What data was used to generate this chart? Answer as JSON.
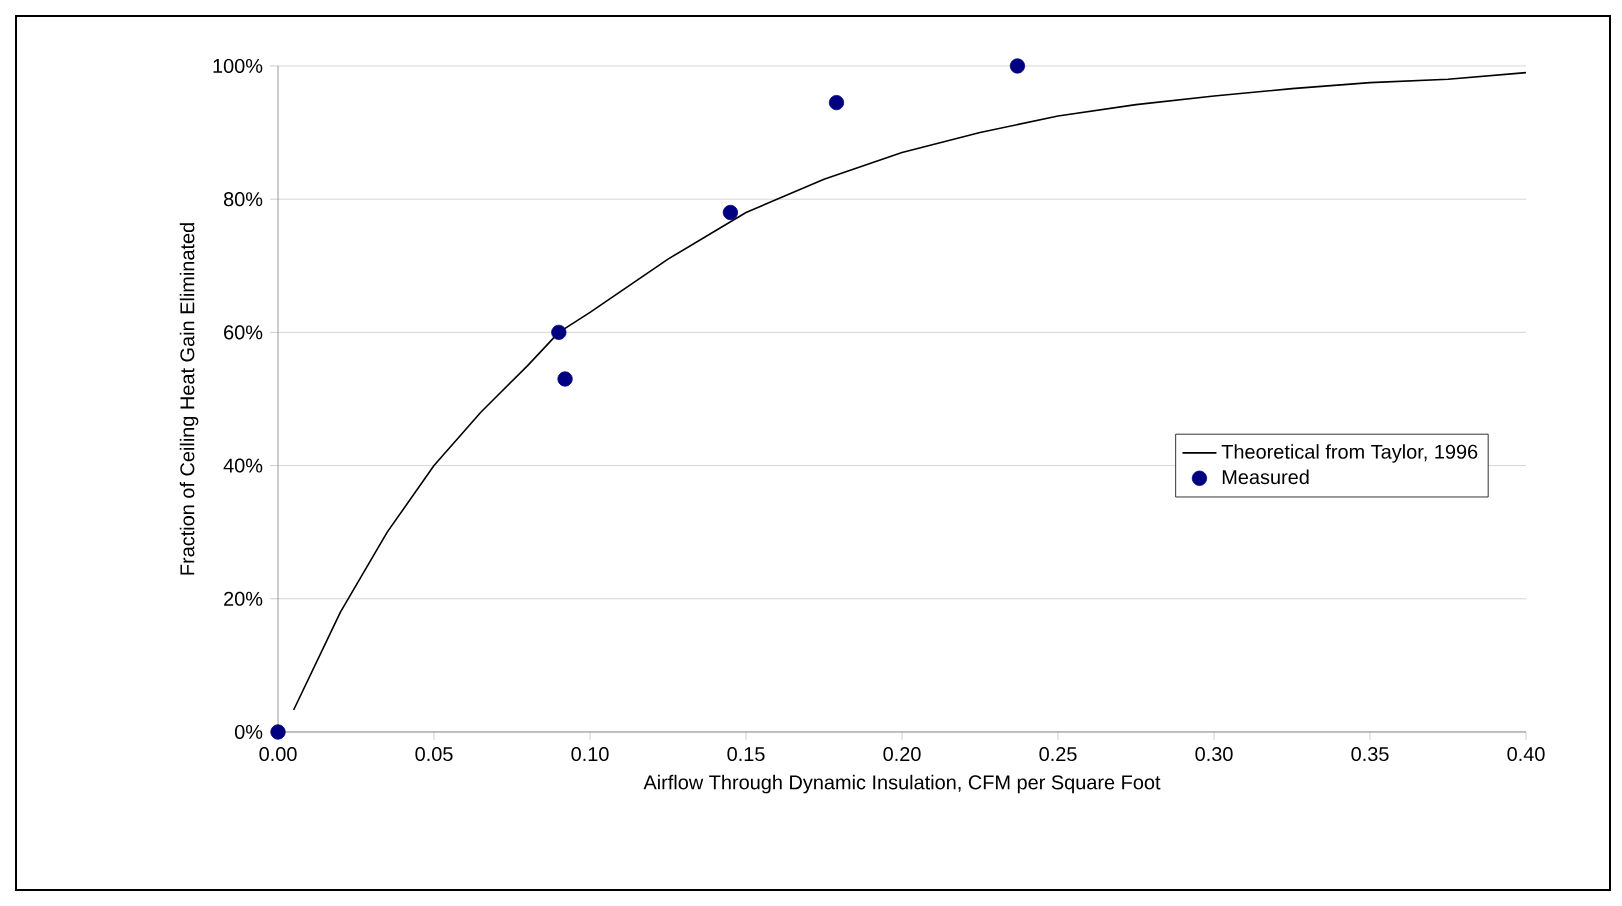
{
  "chart_data": {
    "type": "scatter",
    "xlabel": "Airflow Through Dynamic Insulation, CFM per Square Foot",
    "ylabel": "Fraction of Ceiling Heat Gain Eliminated",
    "xlim": [
      0,
      0.4
    ],
    "ylim": [
      0,
      100
    ],
    "xticks": [
      {
        "value": 0,
        "label": "0.00"
      },
      {
        "value": 0.05,
        "label": "0.05"
      },
      {
        "value": 0.1,
        "label": "0.10"
      },
      {
        "value": 0.15,
        "label": "0.15"
      },
      {
        "value": 0.2,
        "label": "0.20"
      },
      {
        "value": 0.25,
        "label": "0.25"
      },
      {
        "value": 0.3,
        "label": "0.30"
      },
      {
        "value": 0.35,
        "label": "0.35"
      },
      {
        "value": 0.4,
        "label": "0.40"
      }
    ],
    "yticks": [
      {
        "value": 0,
        "label": "0%"
      },
      {
        "value": 20,
        "label": "20%"
      },
      {
        "value": 40,
        "label": "40%"
      },
      {
        "value": 60,
        "label": "60%"
      },
      {
        "value": 80,
        "label": "80%"
      },
      {
        "value": 100,
        "label": "100%"
      }
    ],
    "grid": "y",
    "legend": "right",
    "series": [
      {
        "name": "Theoretical from Taylor, 1996",
        "type": "line",
        "color": "#000000",
        "marker": "none",
        "line_style": "solid",
        "x": [
          0.005,
          0.02,
          0.035,
          0.05,
          0.065,
          0.08,
          0.09,
          0.1,
          0.125,
          0.15,
          0.175,
          0.2,
          0.225,
          0.25,
          0.275,
          0.3,
          0.325,
          0.35,
          0.375,
          0.4
        ],
        "values": [
          3.3,
          18,
          30,
          40,
          48,
          55,
          60,
          63,
          71,
          78,
          83,
          87,
          90,
          92.5,
          94.2,
          95.5,
          96.6,
          97.5,
          98,
          99
        ]
      },
      {
        "name": "Measured",
        "color": "#000080",
        "marker": "circle",
        "x": [
          0,
          0.09,
          0.092,
          0.145,
          0.179,
          0.237
        ],
        "values": [
          0,
          60,
          53,
          78,
          94.5,
          100
        ]
      }
    ]
  }
}
